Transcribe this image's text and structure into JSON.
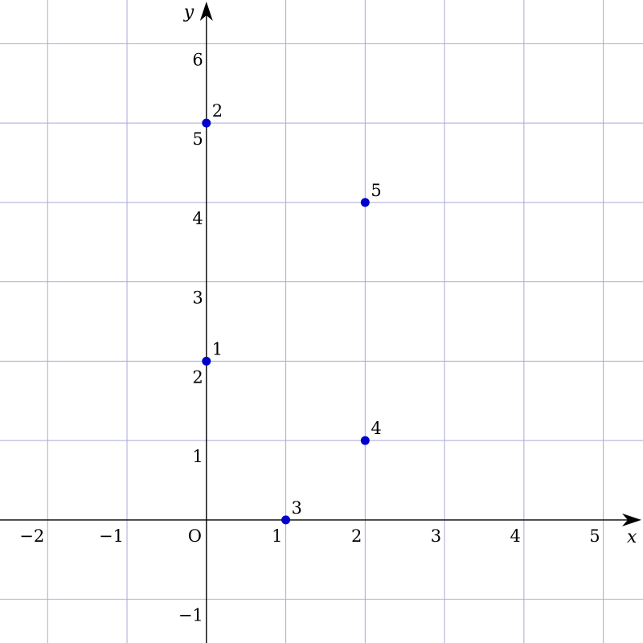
{
  "chart_data": {
    "type": "scatter",
    "title": "",
    "xlabel": "x",
    "ylabel": "y",
    "origin_label": "O",
    "xlim": [
      -2.6,
      5.5
    ],
    "ylim": [
      -1.55,
      6.55
    ],
    "grid": true,
    "x_ticks": [
      -2,
      -1,
      1,
      2,
      3,
      4,
      5
    ],
    "x_tick_labels": [
      "−2",
      "−1",
      "1",
      "2",
      "3",
      "4",
      "5"
    ],
    "y_ticks": [
      -1,
      1,
      2,
      3,
      4,
      5,
      6
    ],
    "y_tick_labels": [
      "−1",
      "1",
      "2",
      "3",
      "4",
      "5",
      "6"
    ],
    "points": [
      {
        "x": 0,
        "y": 2,
        "label": "1"
      },
      {
        "x": 0,
        "y": 5,
        "label": "2"
      },
      {
        "x": 1,
        "y": 0,
        "label": "3"
      },
      {
        "x": 2,
        "y": 1,
        "label": "4"
      },
      {
        "x": 2,
        "y": 4,
        "label": "5"
      }
    ],
    "colors": {
      "grid": "#a9a9d9",
      "axis": "#000000",
      "point": "#0000cc"
    }
  }
}
